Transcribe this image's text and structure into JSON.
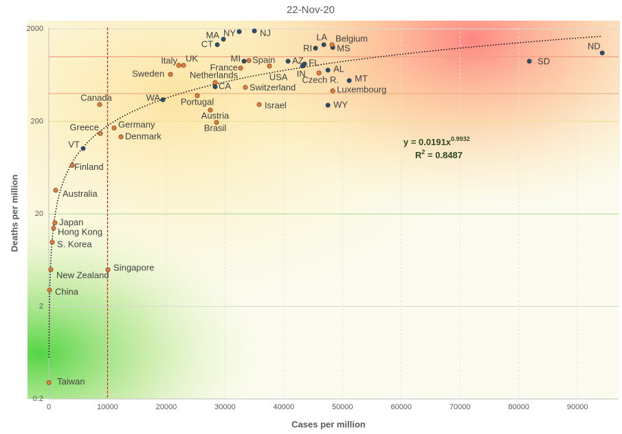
{
  "chart_data": {
    "type": "scatter",
    "title": "22-Nov-20",
    "x_label": "Cases per million",
    "y_label": "Deaths per million",
    "xlim": [
      0,
      97000
    ],
    "ylim": [
      0.2,
      2000
    ],
    "y_scale": "log",
    "xticks": [
      0,
      10000,
      20000,
      30000,
      40000,
      50000,
      60000,
      70000,
      80000,
      90000
    ],
    "yticks": [
      0.2,
      2,
      20,
      200,
      2000
    ],
    "grid": true,
    "series": [
      {
        "color": "#1f4e79",
        "labels": [
          "MA",
          "NY",
          "NJ",
          "CT",
          "LA",
          "RI",
          "MS",
          "AZ",
          "FL",
          "AL",
          "MT",
          "WY",
          "SD",
          "ND",
          "WA",
          "VT",
          "CA",
          "MI",
          "IN"
        ],
        "x": [
          29730,
          32420,
          35000,
          28680,
          46820,
          45410,
          48340,
          40730,
          43540,
          47520,
          51150,
          47520,
          81810,
          94220,
          19430,
          5850,
          28320,
          33240,
          43190
        ],
        "values": [
          1548,
          1868,
          1900,
          1350,
          1350,
          1239,
          1260,
          895,
          836,
          716,
          553,
          299,
          895,
          1099,
          343,
          102,
          474,
          895,
          794
        ]
      },
      {
        "color": "#e07b39",
        "labels": [
          "Belgium",
          "Italy",
          "UK",
          "Sweden",
          "France",
          "Spain",
          "Netherlands",
          "Czech R.",
          "USA",
          "Switzerland",
          "Luxembourg",
          "Portugal",
          "Canada",
          "Israel",
          "Austria",
          "Brasil",
          "Germany",
          "Greece",
          "Denmark",
          "Finland",
          "Australia",
          "Japan",
          "Hong Kong",
          "S. Korea",
          "New Zealand",
          "Singapore",
          "China",
          "Taiwan"
        ],
        "x": [
          48220,
          22120,
          22940,
          20720,
          32650,
          34060,
          28320,
          46000,
          37570,
          33470,
          48340,
          25280,
          8660,
          35810,
          27500,
          28560,
          11120,
          8780,
          12290,
          3980,
          1170,
          1050,
          820,
          590,
          350,
          10070,
          120,
          20
        ],
        "values": [
          1350,
          807,
          807,
          645,
          753,
          910,
          526,
          669,
          794,
          467,
          428,
          380,
          304,
          304,
          265,
          195,
          170,
          148,
          136,
          67,
          36,
          16,
          14,
          9.9,
          5.0,
          5.0,
          3.0,
          0.3
        ]
      }
    ],
    "trendline": {
      "coefficient": 0.0191,
      "exponent": 0.9932,
      "equation": "y = 0.0191x",
      "exponent_label": "0.9932",
      "r2_label": "R",
      "r2_sup": "2",
      "r2_value_label": " = 0.8487",
      "color": "#000000"
    },
    "reference_x": {
      "value": 10000,
      "color": "#d62020"
    },
    "reference_y": [
      {
        "value": 1000,
        "color": "#f0a080"
      },
      {
        "value": 400,
        "color": "#f0b080"
      },
      {
        "value": 200,
        "color": "#f0e090"
      },
      {
        "value": 20,
        "color": "#b8e0a0"
      }
    ]
  }
}
